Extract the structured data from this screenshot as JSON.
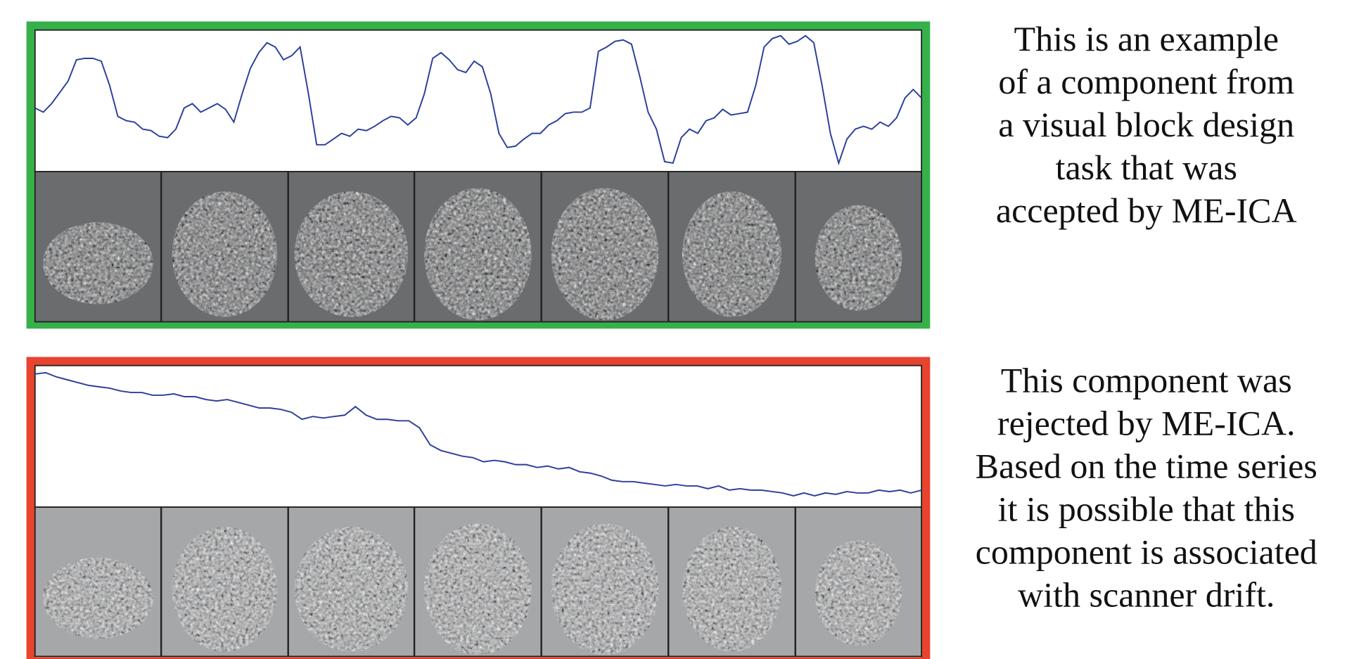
{
  "panels": [
    {
      "chart_data": {
        "type": "line",
        "border_color": "#36b14a",
        "map_background": "#6b6c6e",
        "ylim": [
          0,
          100
        ],
        "series": [
          {
            "color": "#2b3f9a",
            "values": [
              45,
              42,
              48,
              56,
              64,
              79,
              80,
              80,
              78,
              61,
              39,
              36,
              35,
              30,
              29,
              25,
              24,
              30,
              45,
              48,
              42,
              45,
              48,
              44,
              35,
              55,
              73,
              84,
              91,
              88,
              79,
              82,
              88,
              55,
              19,
              19,
              23,
              27,
              25,
              30,
              29,
              32,
              36,
              39,
              38,
              33,
              38,
              55,
              80,
              84,
              79,
              72,
              70,
              78,
              74,
              55,
              27,
              17,
              18,
              23,
              27,
              27,
              33,
              36,
              41,
              42,
              42,
              45,
              85,
              88,
              92,
              93,
              90,
              67,
              42,
              30,
              7,
              6,
              24,
              30,
              27,
              36,
              38,
              44,
              40,
              41,
              42,
              61,
              88,
              94,
              96,
              90,
              92,
              96,
              91,
              61,
              27,
              6,
              23,
              30,
              32,
              30,
              35,
              32,
              38,
              52,
              58,
              52
            ]
          }
        ]
      },
      "caption_lines": [
        "This is an example",
        "of a component from",
        "a visual block design",
        "task that was",
        "accepted by ME-ICA"
      ]
    },
    {
      "chart_data": {
        "type": "line",
        "border_color": "#e8432e",
        "map_background": "#a6a7a9",
        "ylim": [
          0,
          100
        ],
        "series": [
          {
            "color": "#2b3f9a",
            "values": [
              94,
              95,
              92,
              90,
              88,
              86,
              85,
              84,
              82,
              81,
              81,
              79,
              79,
              80,
              78,
              78,
              76,
              75,
              76,
              74,
              72,
              70,
              70,
              69,
              67,
              62,
              64,
              63,
              64,
              65,
              71,
              65,
              62,
              62,
              61,
              61,
              56,
              44,
              40,
              38,
              36,
              35,
              32,
              33,
              32,
              30,
              30,
              28,
              29,
              27,
              28,
              25,
              24,
              22,
              19,
              18,
              18,
              17,
              16,
              15,
              16,
              15,
              15,
              13,
              15,
              12,
              13,
              12,
              12,
              11,
              10,
              8,
              10,
              8,
              10,
              9,
              11,
              10,
              10,
              12,
              11,
              12,
              10,
              12
            ]
          }
        ]
      },
      "caption_lines": [
        "This component was",
        "rejected by ME-ICA.",
        "Based on the time series",
        "it is possible that this",
        "component is associated",
        "with scanner drift."
      ]
    }
  ]
}
